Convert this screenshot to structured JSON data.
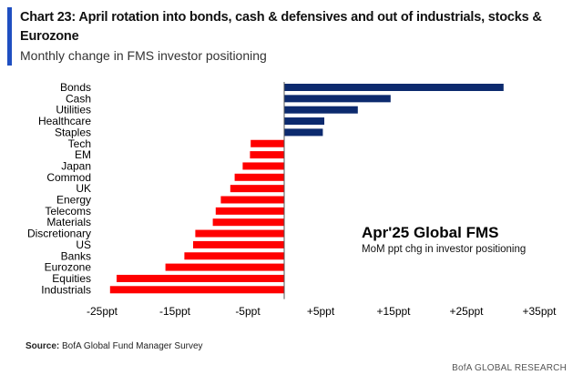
{
  "header": {
    "title": "Chart 23: April rotation into bonds, cash & defensives and out of industrials, stocks & Eurozone",
    "subtitle": "Monthly change in FMS investor positioning"
  },
  "chart_data": {
    "type": "bar",
    "orientation": "horizontal",
    "categories": [
      "Bonds",
      "Cash",
      "Utilities",
      "Healthcare",
      "Staples",
      "Tech",
      "EM",
      "Japan",
      "Commod",
      "UK",
      "Energy",
      "Telecoms",
      "Materials",
      "Discretionary",
      "US",
      "Banks",
      "Eurozone",
      "Equities",
      "Industrials"
    ],
    "values": [
      30.1,
      14.6,
      10.1,
      5.5,
      5.3,
      -4.6,
      -4.7,
      -5.7,
      -6.8,
      -7.4,
      -8.7,
      -9.4,
      -9.8,
      -12.2,
      -12.5,
      -13.7,
      -16.3,
      -23.0,
      -23.9
    ],
    "xlim": [
      -25,
      35
    ],
    "xticks": [
      -25,
      -15,
      -5,
      5,
      15,
      25,
      35
    ],
    "xtick_labels": [
      "-25ppt",
      "-15ppt",
      "-5ppt",
      "+5ppt",
      "+15ppt",
      "+25ppt",
      "+35ppt"
    ],
    "colors": {
      "positive": "#0c2a6e",
      "negative": "#ff0000"
    },
    "annotation": {
      "title": "Apr'25 Global FMS",
      "subtitle": "MoM ppt chg in investor positioning"
    },
    "grid": false,
    "legend": "none"
  },
  "footer": {
    "source_label": "Source:",
    "source_text": " BofA Global Fund Manager Survey",
    "brand": "BofA GLOBAL RESEARCH"
  }
}
